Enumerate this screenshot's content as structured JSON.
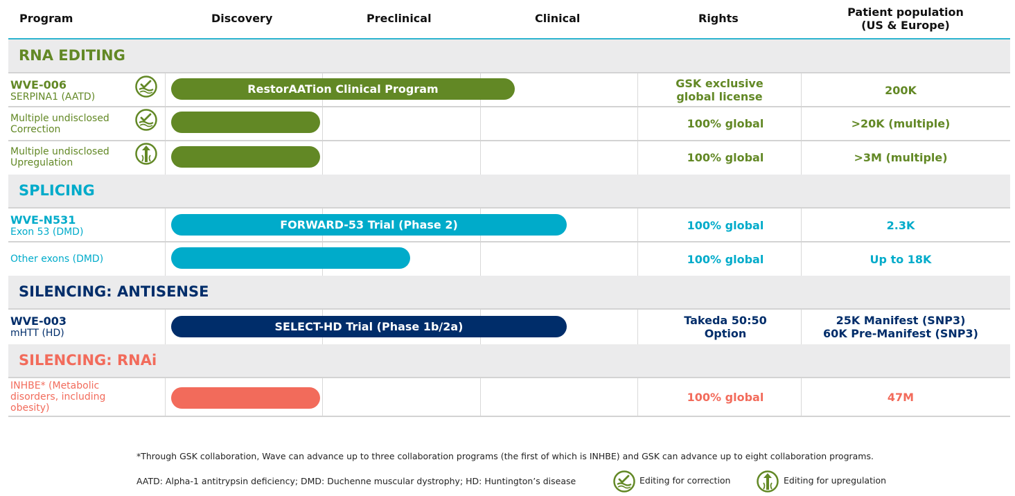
{
  "colors": {
    "rna": "#628825",
    "splicing": "#00abca",
    "antisense": "#002d6a",
    "rnai": "#f26b5b"
  },
  "header": {
    "program": "Program",
    "discovery": "Discovery",
    "preclinical": "Preclinical",
    "clinical": "Clinical",
    "rights": "Rights",
    "population_line1": "Patient population",
    "population_line2": "(US & Europe)"
  },
  "sections": {
    "rna_editing": {
      "title": "RNA EDITING",
      "rows": [
        {
          "name": "WVE-006",
          "sub": "SERPINA1 (AATD)",
          "icon": "editing-correction-icon",
          "bar": "RestorAATion Clinical Program",
          "rights1": "GSK exclusive",
          "rights2": "global license",
          "population": "200K"
        },
        {
          "name": "Multiple undisclosed",
          "sub": "Correction",
          "icon": "editing-correction-icon",
          "bar": "",
          "rights1": "100% global",
          "population": ">20K (multiple)"
        },
        {
          "name": "Multiple undisclosed",
          "sub": "Upregulation",
          "icon": "editing-upregulation-icon",
          "bar": "",
          "rights1": "100% global",
          "population": ">3M (multiple)"
        }
      ]
    },
    "splicing": {
      "title": "SPLICING",
      "rows": [
        {
          "name": "WVE-N531",
          "sub": "Exon 53 (DMD)",
          "bar": "FORWARD-53 Trial (Phase 2)",
          "rights1": "100% global",
          "population": "2.3K"
        },
        {
          "name": "Other exons (DMD)",
          "bar": "",
          "rights1": "100% global",
          "population": "Up to 18K"
        }
      ]
    },
    "antisense": {
      "title": "SILENCING: ANTISENSE",
      "rows": [
        {
          "name": "WVE-003",
          "sub": "mHTT (HD)",
          "bar": "SELECT-HD Trial (Phase 1b/2a)",
          "rights1": "Takeda 50:50",
          "rights2": "Option",
          "population1": "25K Manifest (SNP3)",
          "population2": "60K Pre-Manifest (SNP3)"
        }
      ]
    },
    "rnai": {
      "title": "SILENCING: RNAi",
      "rows": [
        {
          "name1": "INHBE* (Metabolic",
          "name2": "disorders, including",
          "name3": "obesity)",
          "bar": "",
          "rights1": "100% global",
          "population": "47M"
        }
      ]
    }
  },
  "footnotes": {
    "collab": "*Through GSK collaboration, Wave can advance up to three collaboration programs (the first of which is INHBE) and GSK can advance up to eight collaboration programs.",
    "abbrev": "AATD: Alpha-1 antitrypsin deficiency; DMD: Duchenne muscular dystrophy; HD: Huntington’s disease",
    "legend_correction": "Editing for correction",
    "legend_upregulation": "Editing for upregulation"
  }
}
